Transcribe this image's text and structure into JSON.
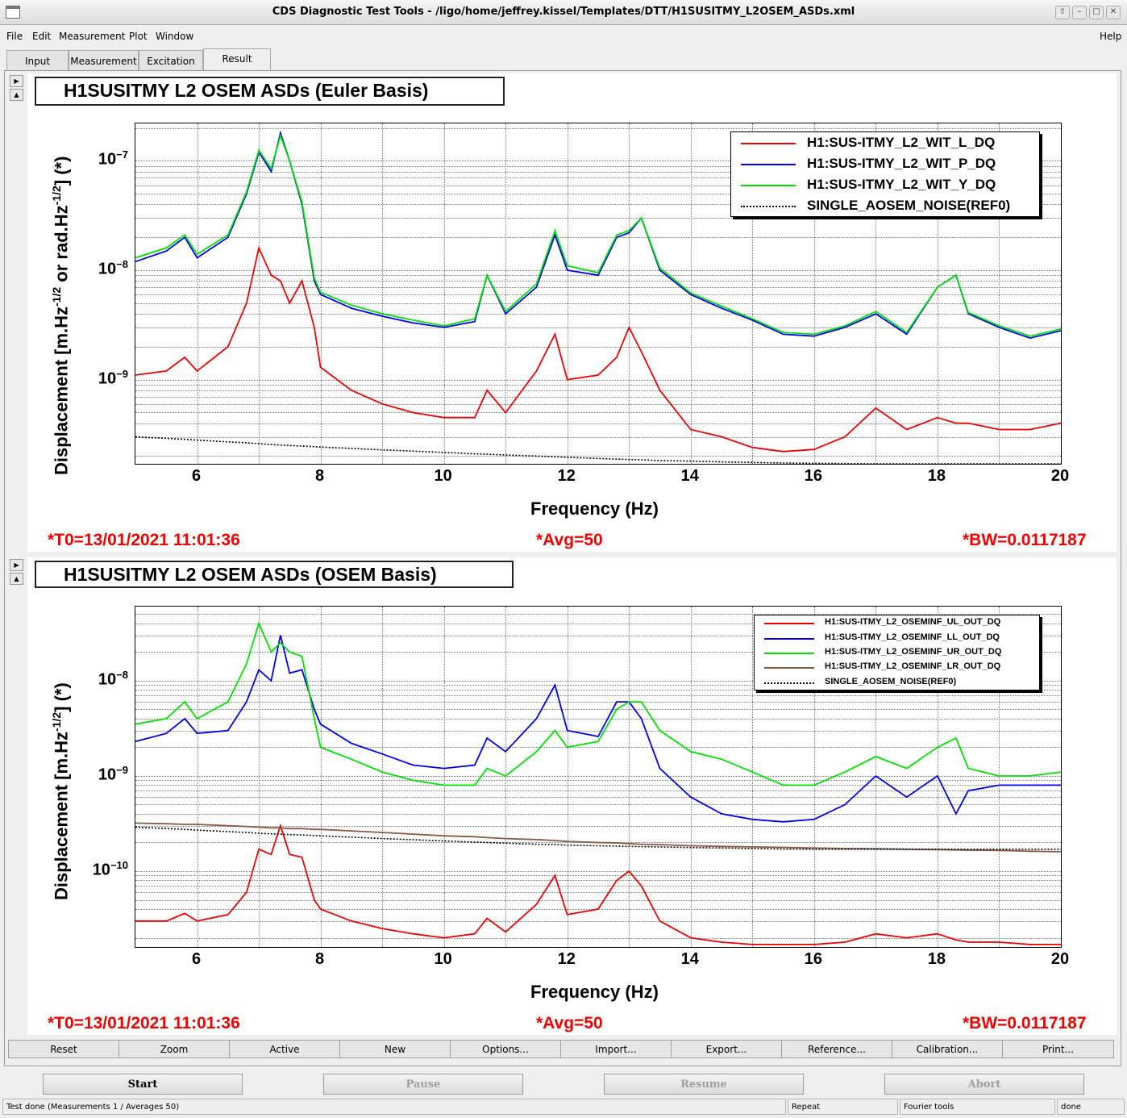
{
  "window": {
    "title": "CDS Diagnostic Test Tools - /ligo/home/jeffrey.kissel/Templates/DTT/H1SUSITMY_L2OSEM_ASDs.xml"
  },
  "menu": {
    "file": "File",
    "edit": "Edit",
    "measurement": "Measurement",
    "plot": "Plot",
    "window": "Window",
    "help": "Help"
  },
  "tabs": [
    "Input",
    "Measurement",
    "Excitation",
    "Result"
  ],
  "active_tab": "Result",
  "colors": {
    "red": "#ee0000",
    "blue": "#0000ee",
    "green": "#00e000",
    "brown": "#8b5a42",
    "info": "#f20000"
  },
  "chart_data": [
    {
      "type": "line",
      "title": "H1SUSITMY L2 OSEM ASDs (Euler Basis)",
      "xlabel": "Frequency (Hz)",
      "ylabel": "Displacement [m.Hz^-1/2 or rad.Hz^-1/2] (*)",
      "ylabel_parts": {
        "a": "Displacement [m.Hz",
        "b": "-1/2",
        "c": " or rad.Hz",
        "d": "-1/2",
        "e": "] (*)"
      },
      "xlim": [
        5,
        20
      ],
      "ylim": [
        1.7e-10,
        2.2e-07
      ],
      "yscale": "log",
      "x_ticks": [
        "6",
        "8",
        "10",
        "12",
        "14",
        "16",
        "18",
        "20"
      ],
      "y_ticks": [
        {
          "value": 1e-07,
          "base": "10",
          "exp": "−7"
        },
        {
          "value": 1e-08,
          "base": "10",
          "exp": "−8"
        },
        {
          "value": 1e-09,
          "base": "10",
          "exp": "−9"
        }
      ],
      "grid": true,
      "legend_position": "top-right",
      "x": [
        5,
        5.5,
        5.8,
        6,
        6.5,
        6.8,
        7,
        7.2,
        7.35,
        7.5,
        7.7,
        7.9,
        8,
        8.5,
        9,
        9.5,
        10,
        10.5,
        10.7,
        11,
        11.5,
        11.8,
        12,
        12.5,
        12.8,
        13,
        13.2,
        13.5,
        14,
        14.5,
        15,
        15.5,
        16,
        16.5,
        17,
        17.5,
        18,
        18.3,
        18.5,
        19,
        19.5,
        20
      ],
      "series": [
        {
          "name": "H1:SUS-ITMY_L2_WIT_L_DQ",
          "color": "#ee0000",
          "style": "solid",
          "values": [
            1.1e-09,
            1.2e-09,
            1.6e-09,
            1.2e-09,
            2e-09,
            5e-09,
            1.6e-08,
            9e-09,
            8e-09,
            5e-09,
            8e-09,
            3e-09,
            1.3e-09,
            8e-10,
            6e-10,
            5e-10,
            4.5e-10,
            4.5e-10,
            8e-10,
            5e-10,
            1.2e-09,
            2.6e-09,
            1e-09,
            1.1e-09,
            1.6e-09,
            3e-09,
            1.8e-09,
            8e-10,
            3.5e-10,
            3e-10,
            2.4e-10,
            2.2e-10,
            2.3e-10,
            3e-10,
            5.5e-10,
            3.5e-10,
            4.5e-10,
            4e-10,
            4e-10,
            3.5e-10,
            3.5e-10,
            4e-10
          ]
        },
        {
          "name": "H1:SUS-ITMY_L2_WIT_P_DQ",
          "color": "#0000ee",
          "style": "solid",
          "values": [
            1.2e-08,
            1.5e-08,
            2e-08,
            1.3e-08,
            2e-08,
            5e-08,
            1.2e-07,
            8e-08,
            1.8e-07,
            1e-07,
            4e-08,
            8e-09,
            6e-09,
            4.5e-09,
            3.8e-09,
            3.3e-09,
            3e-09,
            3.4e-09,
            9e-09,
            4e-09,
            7e-09,
            2.1e-08,
            1e-08,
            9e-09,
            2e-08,
            2.2e-08,
            3e-08,
            1e-08,
            6e-09,
            4.5e-09,
            3.5e-09,
            2.6e-09,
            2.5e-09,
            3e-09,
            4e-09,
            2.6e-09,
            7e-09,
            9e-09,
            4e-09,
            3e-09,
            2.4e-09,
            2.8e-09
          ]
        },
        {
          "name": "H1:SUS-ITMY_L2_WIT_Y_DQ",
          "color": "#00e000",
          "style": "solid",
          "values": [
            1.3e-08,
            1.6e-08,
            2.1e-08,
            1.4e-08,
            2.1e-08,
            5.2e-08,
            1.25e-07,
            8.5e-08,
            1.7e-07,
            1e-07,
            4.2e-08,
            8.5e-09,
            6.3e-09,
            4.8e-09,
            4e-09,
            3.5e-09,
            3.1e-09,
            3.6e-09,
            9e-09,
            4.2e-09,
            7.5e-09,
            2.3e-08,
            1.1e-08,
            9.5e-09,
            2.1e-08,
            2.3e-08,
            3e-08,
            1.05e-08,
            6.2e-09,
            4.7e-09,
            3.6e-09,
            2.7e-09,
            2.6e-09,
            3.1e-09,
            4.2e-09,
            2.7e-09,
            7e-09,
            9e-09,
            4.1e-09,
            3.1e-09,
            2.5e-09,
            2.9e-09
          ]
        },
        {
          "name": "SINGLE_AOSEM_NOISE(REF0)",
          "color": "#000000",
          "style": "dotted",
          "values": [
            3e-10,
            2.9e-10,
            2.85e-10,
            2.8e-10,
            2.7e-10,
            2.65e-10,
            2.6e-10,
            2.55e-10,
            2.52e-10,
            2.5e-10,
            2.47e-10,
            2.44e-10,
            2.42e-10,
            2.35e-10,
            2.28e-10,
            2.22e-10,
            2.16e-10,
            2.1e-10,
            2.08e-10,
            2.05e-10,
            2e-10,
            1.97e-10,
            1.95e-10,
            1.9e-10,
            1.88e-10,
            1.86e-10,
            1.85e-10,
            1.82e-10,
            1.8e-10,
            1.77e-10,
            1.75e-10,
            1.73e-10,
            1.72e-10,
            1.71e-10,
            1.7e-10,
            1.7e-10,
            1.7e-10,
            1.7e-10,
            1.7e-10,
            1.7e-10,
            1.7e-10,
            1.7e-10
          ]
        }
      ],
      "info": {
        "t0": "*T0=13/01/2021 11:01:36",
        "avg": "*Avg=50",
        "bw": "*BW=0.0117187"
      }
    },
    {
      "type": "line",
      "title": "H1SUSITMY L2 OSEM ASDs (OSEM Basis)",
      "xlabel": "Frequency (Hz)",
      "ylabel": "Displacement [m.Hz^-1/2] (*)",
      "ylabel_parts": {
        "a": "Displacement [m.Hz",
        "b": "-1/2",
        "c": "",
        "d": "",
        "e": "] (*)"
      },
      "xlim": [
        5,
        20
      ],
      "ylim": [
        1.6e-11,
        6e-08
      ],
      "yscale": "log",
      "x_ticks": [
        "6",
        "8",
        "10",
        "12",
        "14",
        "16",
        "18",
        "20"
      ],
      "y_ticks": [
        {
          "value": 1e-08,
          "base": "10",
          "exp": "−8"
        },
        {
          "value": 1e-09,
          "base": "10",
          "exp": "−9"
        },
        {
          "value": 1e-10,
          "base": "10",
          "exp": "−10"
        }
      ],
      "grid": true,
      "legend_position": "top-right",
      "x": [
        5,
        5.5,
        5.8,
        6,
        6.5,
        6.8,
        7,
        7.2,
        7.35,
        7.5,
        7.7,
        7.9,
        8,
        8.5,
        9,
        9.5,
        10,
        10.5,
        10.7,
        11,
        11.5,
        11.8,
        12,
        12.5,
        12.8,
        13,
        13.2,
        13.5,
        14,
        14.5,
        15,
        15.5,
        16,
        16.5,
        17,
        17.5,
        18,
        18.3,
        18.5,
        19,
        19.5,
        20
      ],
      "series": [
        {
          "name": "H1:SUS-ITMY_L2_OSEMINF_UL_OUT_DQ",
          "color": "#ee0000",
          "style": "solid",
          "values": [
            3e-11,
            3e-11,
            3.6e-11,
            3e-11,
            3.5e-11,
            6e-11,
            1.7e-10,
            1.5e-10,
            3e-10,
            1.5e-10,
            1.4e-10,
            5e-11,
            4e-11,
            3e-11,
            2.5e-11,
            2.2e-11,
            2e-11,
            2.2e-11,
            3.2e-11,
            2.3e-11,
            4.5e-11,
            9e-11,
            3.5e-11,
            4e-11,
            8e-11,
            1e-10,
            7e-11,
            3e-11,
            2e-11,
            1.8e-11,
            1.7e-11,
            1.7e-11,
            1.7e-11,
            1.8e-11,
            2.2e-11,
            2e-11,
            2.2e-11,
            1.9e-11,
            1.8e-11,
            1.8e-11,
            1.7e-11,
            1.7e-11
          ]
        },
        {
          "name": "H1:SUS-ITMY_L2_OSEMINF_LL_OUT_DQ",
          "color": "#0000ee",
          "style": "solid",
          "values": [
            2.3e-09,
            2.8e-09,
            4e-09,
            2.8e-09,
            3e-09,
            6e-09,
            1.3e-08,
            1e-08,
            3e-08,
            1.2e-08,
            1.3e-08,
            5e-09,
            3.5e-09,
            2.2e-09,
            1.7e-09,
            1.3e-09,
            1.2e-09,
            1.3e-09,
            2.5e-09,
            1.8e-09,
            4e-09,
            9e-09,
            3e-09,
            2.6e-09,
            6e-09,
            6e-09,
            4e-09,
            1.2e-09,
            6e-10,
            4e-10,
            3.5e-10,
            3.3e-10,
            3.5e-10,
            5e-10,
            1e-09,
            6e-10,
            1e-09,
            4e-10,
            7e-10,
            8e-10,
            8e-10,
            8e-10
          ]
        },
        {
          "name": "H1:SUS-ITMY_L2_OSEMINF_UR_OUT_DQ",
          "color": "#00e000",
          "style": "solid",
          "values": [
            3.5e-09,
            4e-09,
            6e-09,
            4e-09,
            6e-09,
            1.5e-08,
            4e-08,
            2e-08,
            2.5e-08,
            2e-08,
            1.8e-08,
            4e-09,
            2e-09,
            1.5e-09,
            1.1e-09,
            9e-10,
            8e-10,
            8e-10,
            1.2e-09,
            1e-09,
            1.8e-09,
            3e-09,
            2e-09,
            2.3e-09,
            5e-09,
            6e-09,
            6e-09,
            3e-09,
            1.8e-09,
            1.5e-09,
            1.1e-09,
            8e-10,
            8e-10,
            1.1e-09,
            1.6e-09,
            1.2e-09,
            2e-09,
            2.5e-09,
            1.2e-09,
            1e-09,
            1e-09,
            1.1e-09
          ]
        },
        {
          "name": "H1:SUS-ITMY_L2_OSEMINF_LR_OUT_DQ",
          "color": "#8b5a42",
          "style": "solid",
          "values": [
            3.2e-10,
            3.15e-10,
            3.1e-10,
            3.1e-10,
            3e-10,
            2.95e-10,
            2.9e-10,
            2.85e-10,
            2.85e-10,
            2.8e-10,
            2.8e-10,
            2.75e-10,
            2.75e-10,
            2.65e-10,
            2.55e-10,
            2.45e-10,
            2.35e-10,
            2.3e-10,
            2.25e-10,
            2.2e-10,
            2.15e-10,
            2.1e-10,
            2.05e-10,
            2e-10,
            1.98e-10,
            1.95e-10,
            1.92e-10,
            1.9e-10,
            1.85e-10,
            1.82e-10,
            1.8e-10,
            1.78e-10,
            1.75e-10,
            1.73e-10,
            1.72e-10,
            1.7e-10,
            1.68e-10,
            1.67e-10,
            1.66e-10,
            1.65e-10,
            1.62e-10,
            1.6e-10
          ]
        },
        {
          "name": "SINGLE_AOSEM_NOISE(REF0)",
          "color": "#000000",
          "style": "dotted",
          "values": [
            2.9e-10,
            2.8e-10,
            2.75e-10,
            2.7e-10,
            2.6e-10,
            2.55e-10,
            2.5e-10,
            2.47e-10,
            2.45e-10,
            2.42e-10,
            2.4e-10,
            2.37e-10,
            2.35e-10,
            2.28e-10,
            2.2e-10,
            2.14e-10,
            2.08e-10,
            2.02e-10,
            2e-10,
            1.97e-10,
            1.92e-10,
            1.9e-10,
            1.88e-10,
            1.85e-10,
            1.83e-10,
            1.82e-10,
            1.81e-10,
            1.8e-10,
            1.77e-10,
            1.75e-10,
            1.73e-10,
            1.71e-10,
            1.7e-10,
            1.7e-10,
            1.7e-10,
            1.7e-10,
            1.7e-10,
            1.7e-10,
            1.7e-10,
            1.7e-10,
            1.7e-10,
            1.7e-10
          ]
        }
      ],
      "info": {
        "t0": "*T0=13/01/2021 11:01:36",
        "avg": "*Avg=50",
        "bw": "*BW=0.0117187"
      }
    }
  ],
  "toolbar": [
    "Reset",
    "Zoom",
    "Active",
    "New",
    "Options...",
    "Import...",
    "Export...",
    "Reference...",
    "Calibration...",
    "Print..."
  ],
  "controls": {
    "start": "Start",
    "pause": "Pause",
    "resume": "Resume",
    "abort": "Abort"
  },
  "status": {
    "message": "Test done (Measurements 1 / Averages 50)",
    "repeat": "Repeat",
    "fourier": "Fourier tools",
    "state": "done"
  }
}
